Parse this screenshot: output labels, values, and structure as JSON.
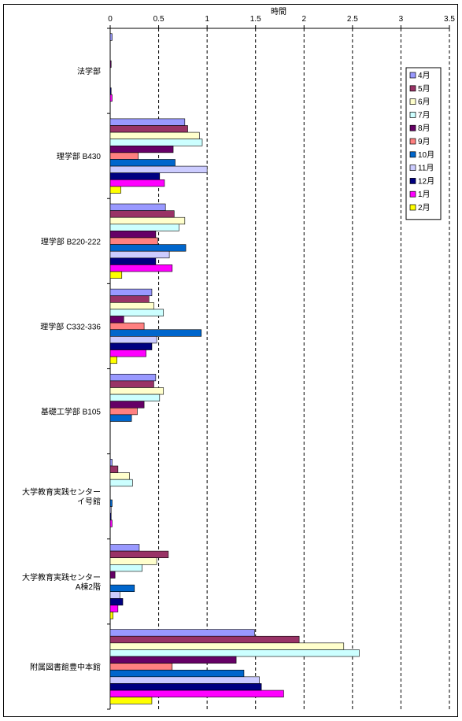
{
  "chart_data": {
    "type": "bar",
    "orientation": "horizontal",
    "xlabel": "時間",
    "xlim": [
      0,
      3.5
    ],
    "xticks": [
      "0",
      "0.5",
      "1",
      "1.5",
      "2",
      "2.5",
      "3",
      "3.5"
    ],
    "grid": "vertical dashed",
    "legend_position": "top-right",
    "categories": [
      [
        "法学部"
      ],
      [
        "理学部 B430"
      ],
      [
        "理学部 B220-222"
      ],
      [
        "理学部 C332-336"
      ],
      [
        "基礎工学部 B105"
      ],
      [
        "大学教育実践センター",
        "イ号館"
      ],
      [
        "大学教育実践センター",
        "A棟2階"
      ],
      [
        "附属図書館豊中本館"
      ]
    ],
    "series": [
      {
        "name": "4月",
        "color": "#9999ff",
        "values": [
          0.02,
          0.77,
          0.57,
          0.43,
          0.47,
          0.02,
          0.3,
          1.49
        ]
      },
      {
        "name": "5月",
        "color": "#993366",
        "values": [
          0.0,
          0.8,
          0.66,
          0.4,
          0.45,
          0.08,
          0.6,
          1.95
        ]
      },
      {
        "name": "6月",
        "color": "#ffffcc",
        "values": [
          0.0,
          0.92,
          0.77,
          0.45,
          0.55,
          0.2,
          0.48,
          2.41
        ]
      },
      {
        "name": "7月",
        "color": "#ccffff",
        "values": [
          0.0,
          0.95,
          0.71,
          0.55,
          0.51,
          0.23,
          0.33,
          2.57
        ]
      },
      {
        "name": "8月",
        "color": "#660066",
        "values": [
          0.01,
          0.65,
          0.47,
          0.14,
          0.35,
          0.0,
          0.05,
          1.3
        ]
      },
      {
        "name": "9月",
        "color": "#ff8080",
        "values": [
          0.0,
          0.29,
          0.49,
          0.35,
          0.28,
          0.0,
          0.0,
          0.64
        ]
      },
      {
        "name": "10月",
        "color": "#0066cc",
        "values": [
          0.0,
          0.67,
          0.78,
          0.94,
          0.22,
          0.02,
          0.25,
          1.38
        ]
      },
      {
        "name": "11月",
        "color": "#ccccff",
        "values": [
          0.0,
          1.0,
          0.61,
          0.48,
          0.0,
          0.01,
          0.1,
          1.54
        ]
      },
      {
        "name": "12月",
        "color": "#000080",
        "values": [
          0.01,
          0.51,
          0.47,
          0.43,
          0.0,
          0.01,
          0.13,
          1.56
        ]
      },
      {
        "name": "1月",
        "color": "#ff00ff",
        "values": [
          0.02,
          0.56,
          0.64,
          0.37,
          0.0,
          0.02,
          0.08,
          1.79
        ]
      },
      {
        "name": "2月",
        "color": "#ffff00",
        "values": [
          0.0,
          0.11,
          0.12,
          0.07,
          0.0,
          0.0,
          0.03,
          0.43
        ]
      }
    ]
  }
}
